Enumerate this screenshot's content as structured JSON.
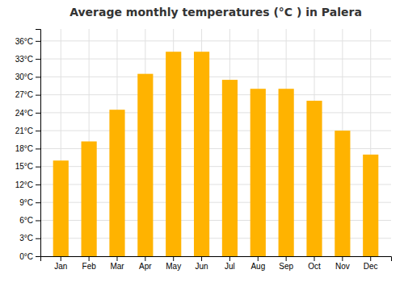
{
  "chart_data": {
    "type": "bar",
    "title": "Average monthly temperatures (°C ) in Palera",
    "categories": [
      "Jan",
      "Feb",
      "Mar",
      "Apr",
      "May",
      "Jun",
      "Jul",
      "Aug",
      "Sep",
      "Oct",
      "Nov",
      "Dec"
    ],
    "values": [
      16.0,
      19.2,
      24.5,
      30.5,
      34.2,
      34.2,
      29.5,
      28.0,
      28.0,
      26.0,
      21.0,
      17.0
    ],
    "color": "#FFB300",
    "ylim": [
      0,
      38
    ],
    "yticks": [
      {
        "value": 0,
        "label": "0°C"
      },
      {
        "value": 3,
        "label": "3°C"
      },
      {
        "value": 6,
        "label": "6°C"
      },
      {
        "value": 9,
        "label": "9°C"
      },
      {
        "value": 12,
        "label": "12°C"
      },
      {
        "value": 15,
        "label": "15°C"
      },
      {
        "value": 18,
        "label": "18°C"
      },
      {
        "value": 21,
        "label": "21°C"
      },
      {
        "value": 24,
        "label": "24°C"
      },
      {
        "value": 27,
        "label": "27°C"
      },
      {
        "value": 30,
        "label": "30°C"
      },
      {
        "value": 33,
        "label": "33°C"
      },
      {
        "value": 36,
        "label": "36°C"
      }
    ],
    "grid": true
  }
}
